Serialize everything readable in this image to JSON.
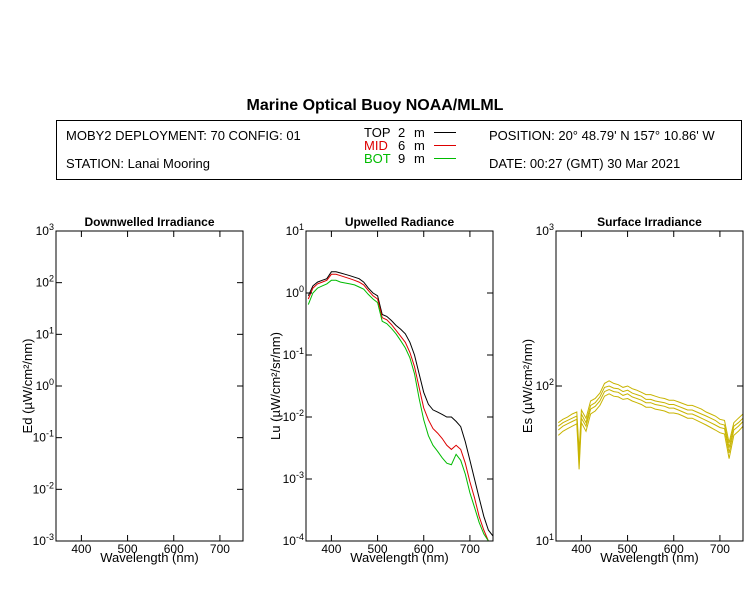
{
  "header": {
    "title": "Marine Optical Buoy NOAA/MLML",
    "deployment": "MOBY2 DEPLOYMENT: 70 CONFIG: 01",
    "station": "STATION: Lanai Mooring",
    "position": "POSITION: 20° 48.79' N   157° 10.86' W",
    "date": "DATE: 00:27 (GMT) 30 Mar 2021"
  },
  "legend": [
    {
      "name": "TOP",
      "depth": "2",
      "unit": "m",
      "color": "#000000"
    },
    {
      "name": "MID",
      "depth": "6",
      "unit": "m",
      "color": "#dd0000"
    },
    {
      "name": "BOT",
      "depth": "9",
      "unit": "m",
      "color": "#00bb00"
    }
  ],
  "chart_data": [
    {
      "type": "line",
      "title": "Downwelled Irradiance",
      "xlabel": "Wavelength (nm)",
      "ylabel": "Ed (µW/cm²/nm)",
      "xlim": [
        345,
        750
      ],
      "ylim": [
        0.001,
        1000
      ],
      "yscale": "log",
      "xticks": [
        "400",
        "500",
        "600",
        "700"
      ],
      "ytick_base": "10",
      "ytick_exponents": [
        "-3",
        "-2",
        "-1",
        "0",
        "1",
        "2",
        "3"
      ],
      "series": []
    },
    {
      "type": "line",
      "title": "Upwelled Radiance",
      "xlabel": "Wavelength (nm)",
      "ylabel": "Lu (µW/cm²/sr/nm)",
      "xlim": [
        345,
        750
      ],
      "ylim": [
        0.0001,
        10
      ],
      "yscale": "log",
      "xticks": [
        "400",
        "500",
        "600",
        "700"
      ],
      "ytick_base": "10",
      "ytick_exponents": [
        "-4",
        "-3",
        "-2",
        "-1",
        "0",
        "1"
      ],
      "series": [
        {
          "name": "TOP",
          "color": "#000000",
          "x": [
            350,
            360,
            370,
            380,
            390,
            400,
            410,
            420,
            430,
            440,
            450,
            460,
            470,
            480,
            490,
            500,
            510,
            520,
            530,
            540,
            550,
            560,
            570,
            580,
            590,
            600,
            610,
            620,
            630,
            640,
            650,
            660,
            670,
            680,
            690,
            700,
            710,
            720,
            730,
            740,
            750
          ],
          "y": [
            0.9,
            1.3,
            1.5,
            1.6,
            1.7,
            2.2,
            2.2,
            2.1,
            2.0,
            1.9,
            1.8,
            1.7,
            1.5,
            1.2,
            1.0,
            0.9,
            0.45,
            0.42,
            0.36,
            0.3,
            0.26,
            0.22,
            0.16,
            0.1,
            0.05,
            0.025,
            0.016,
            0.013,
            0.012,
            0.011,
            0.01,
            0.01,
            0.0085,
            0.007,
            0.004,
            0.002,
            0.001,
            0.0005,
            0.00025,
            0.00015,
            0.00012
          ]
        },
        {
          "name": "MID",
          "color": "#dd0000",
          "x": [
            350,
            360,
            370,
            380,
            390,
            400,
            410,
            420,
            430,
            440,
            450,
            460,
            470,
            480,
            490,
            500,
            510,
            520,
            530,
            540,
            550,
            560,
            570,
            580,
            590,
            600,
            610,
            620,
            630,
            640,
            650,
            660,
            670,
            680,
            690,
            700,
            710,
            720,
            730,
            740,
            750
          ],
          "y": [
            0.8,
            1.2,
            1.4,
            1.5,
            1.6,
            2.0,
            2.0,
            1.9,
            1.8,
            1.7,
            1.6,
            1.5,
            1.35,
            1.1,
            0.9,
            0.8,
            0.4,
            0.37,
            0.31,
            0.25,
            0.2,
            0.16,
            0.11,
            0.065,
            0.03,
            0.014,
            0.009,
            0.0065,
            0.0055,
            0.0045,
            0.0035,
            0.003,
            0.0035,
            0.003,
            0.0018,
            0.0009,
            0.0005,
            0.00025,
            0.00015,
            0.0001,
            0.0001
          ]
        },
        {
          "name": "BOT",
          "color": "#00bb00",
          "x": [
            350,
            360,
            370,
            380,
            390,
            400,
            410,
            420,
            430,
            440,
            450,
            460,
            470,
            480,
            490,
            500,
            510,
            520,
            530,
            540,
            550,
            560,
            570,
            580,
            590,
            600,
            610,
            620,
            630,
            640,
            650,
            660,
            670,
            680,
            690,
            700,
            710,
            720,
            730,
            740,
            750
          ],
          "y": [
            0.65,
            1.0,
            1.2,
            1.3,
            1.4,
            1.6,
            1.6,
            1.5,
            1.45,
            1.4,
            1.35,
            1.25,
            1.15,
            0.95,
            0.8,
            0.7,
            0.35,
            0.32,
            0.27,
            0.22,
            0.17,
            0.13,
            0.09,
            0.05,
            0.02,
            0.009,
            0.005,
            0.0035,
            0.0028,
            0.0022,
            0.0018,
            0.0017,
            0.0025,
            0.002,
            0.0012,
            0.0006,
            0.00035,
            0.0002,
            0.00013,
            0.0001,
            0.0001
          ]
        }
      ]
    },
    {
      "type": "line",
      "title": "Surface Irradiance",
      "xlabel": "Wavelength (nm)",
      "ylabel": "Es (µW/cm²/nm)",
      "xlim": [
        345,
        750
      ],
      "ylim": [
        10,
        1000
      ],
      "yscale": "log",
      "xticks": [
        "400",
        "500",
        "600",
        "700"
      ],
      "ytick_base": "10",
      "ytick_exponents": [
        "1",
        "2",
        "3"
      ],
      "series": [
        {
          "name": "",
          "color": "#c8b400",
          "x": [
            350,
            360,
            370,
            380,
            390,
            395,
            400,
            410,
            420,
            430,
            440,
            450,
            460,
            470,
            480,
            490,
            500,
            510,
            520,
            530,
            540,
            550,
            560,
            570,
            580,
            590,
            600,
            610,
            620,
            630,
            640,
            650,
            660,
            670,
            680,
            690,
            700,
            710,
            720,
            730,
            740,
            750
          ],
          "y": [
            55,
            58,
            60,
            62,
            64,
            35,
            66,
            58,
            75,
            78,
            85,
            98,
            100,
            97,
            96,
            92,
            94,
            90,
            88,
            86,
            82,
            82,
            80,
            79,
            78,
            76,
            76,
            74,
            72,
            70,
            70,
            68,
            66,
            64,
            62,
            60,
            57,
            56,
            40,
            55,
            58,
            62
          ]
        },
        {
          "name": "",
          "color": "#c8b400",
          "x": [
            350,
            360,
            370,
            380,
            390,
            395,
            400,
            410,
            420,
            430,
            440,
            450,
            460,
            470,
            480,
            490,
            500,
            510,
            520,
            530,
            540,
            550,
            560,
            570,
            580,
            590,
            600,
            610,
            620,
            630,
            640,
            650,
            660,
            670,
            680,
            690,
            700,
            710,
            720,
            730,
            740,
            750
          ],
          "y": [
            58,
            61,
            63,
            66,
            68,
            38,
            70,
            62,
            80,
            83,
            90,
            104,
            108,
            104,
            102,
            98,
            100,
            96,
            94,
            91,
            88,
            88,
            86,
            84,
            83,
            81,
            81,
            79,
            77,
            75,
            75,
            73,
            71,
            68,
            66,
            64,
            61,
            60,
            43,
            58,
            62,
            66
          ]
        },
        {
          "name": "",
          "color": "#c8b400",
          "x": [
            350,
            360,
            370,
            380,
            390,
            395,
            400,
            410,
            420,
            430,
            440,
            450,
            460,
            470,
            480,
            490,
            500,
            510,
            520,
            530,
            540,
            550,
            560,
            570,
            580,
            590,
            600,
            610,
            620,
            630,
            640,
            650,
            660,
            670,
            680,
            690,
            700,
            710,
            720,
            730,
            740,
            750
          ],
          "y": [
            52,
            55,
            57,
            59,
            61,
            32,
            62,
            55,
            71,
            74,
            80,
            92,
            95,
            92,
            91,
            87,
            89,
            85,
            83,
            81,
            78,
            78,
            76,
            75,
            74,
            72,
            72,
            70,
            68,
            66,
            66,
            64,
            62,
            60,
            58,
            56,
            54,
            53,
            37,
            52,
            55,
            59
          ]
        },
        {
          "name": "",
          "color": "#c8b400",
          "x": [
            350,
            360,
            370,
            380,
            390,
            395,
            400,
            410,
            420,
            430,
            440,
            450,
            460,
            470,
            480,
            490,
            500,
            510,
            520,
            530,
            540,
            550,
            560,
            570,
            580,
            590,
            600,
            610,
            620,
            630,
            640,
            650,
            660,
            670,
            680,
            690,
            700,
            710,
            720,
            730,
            740,
            750
          ],
          "y": [
            48,
            51,
            53,
            55,
            57,
            29,
            58,
            51,
            66,
            69,
            75,
            86,
            89,
            86,
            85,
            82,
            83,
            80,
            78,
            76,
            73,
            73,
            71,
            70,
            69,
            67,
            67,
            66,
            64,
            62,
            62,
            60,
            58,
            56,
            54,
            52,
            50,
            49,
            34,
            48,
            51,
            55
          ]
        }
      ]
    }
  ]
}
